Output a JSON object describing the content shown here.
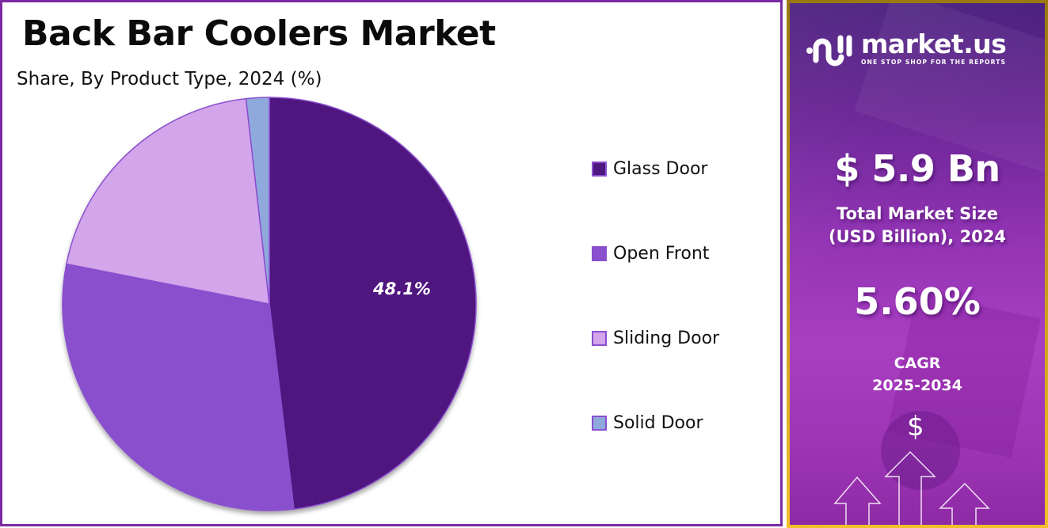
{
  "chart": {
    "title": "Back Bar Coolers Market",
    "subtitle": "Share, By Product Type, 2024 (%)",
    "highlight_label": "48.1%"
  },
  "legend": [
    {
      "label": "Glass Door",
      "color": "#4f1780"
    },
    {
      "label": "Open Front",
      "color": "#8a4fcd"
    },
    {
      "label": "Sliding Door",
      "color": "#d3a5ea"
    },
    {
      "label": "Solid Door",
      "color": "#8fa9dc"
    }
  ],
  "brand": {
    "name": "market.us",
    "tagline": "ONE STOP SHOP FOR THE REPORTS"
  },
  "stats": {
    "market_size_value": "$ 5.9 Bn",
    "market_size_label_line1": "Total Market Size",
    "market_size_label_line2": "(USD Billion), 2024",
    "cagr_value": "5.60%",
    "cagr_label_line1": "CAGR",
    "cagr_label_line2": "2025-2034",
    "dollar_symbol": "$"
  },
  "colors": {
    "left_border": "#7a2ba4",
    "right_border": "#f2c02a",
    "slice_outline": "#8a4fcf"
  },
  "chart_data": {
    "type": "pie",
    "title": "Back Bar Coolers Market",
    "subtitle": "Share, By Product Type, 2024 (%)",
    "categories": [
      "Glass Door",
      "Open Front",
      "Sliding Door",
      "Solid Door"
    ],
    "values": [
      48.1,
      30.0,
      20.1,
      1.8
    ],
    "colors": [
      "#4f1780",
      "#8a4fcd",
      "#d3a5ea",
      "#8fa9dc"
    ],
    "data_labels": {
      "Glass Door": "48.1%"
    },
    "start_angle": "12 o'clock, clockwise",
    "legend_position": "right"
  }
}
